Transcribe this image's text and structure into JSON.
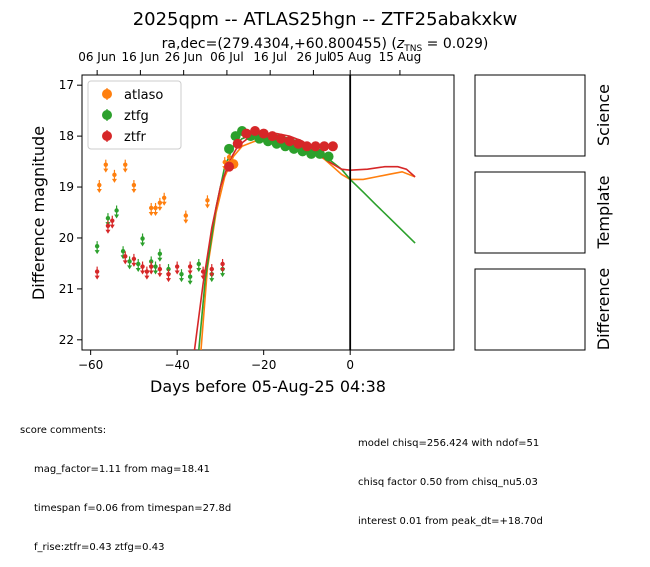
{
  "title": "2025qpm -- ATLAS25hgn -- ZTF25abakxkw",
  "subtitle_prefix": "ra,dec=(279.4304,+60.800455) (",
  "subtitle_z": "z",
  "subtitle_tns": "TNS",
  "subtitle_suffix": " = 0.029)",
  "colors": {
    "atlaso": "#ff7f0e",
    "ztfg": "#2ca02c",
    "ztfr": "#d62728"
  },
  "chart_data": {
    "type": "scatter",
    "xlabel": "Days before 05-Aug-25 04:38",
    "ylabel": "Difference magnitude",
    "xlim": [
      -62,
      24
    ],
    "ylim": [
      22.2,
      16.8
    ],
    "y_inverted": true,
    "x_ticks": [
      -60,
      -40,
      -20,
      0
    ],
    "y_ticks": [
      17,
      18,
      19,
      20,
      21,
      22
    ],
    "top_axis_ticks": [
      {
        "x": -58.5,
        "label": "06 Jun"
      },
      {
        "x": -48.5,
        "label": "16 Jun"
      },
      {
        "x": -38.5,
        "label": "26 Jun"
      },
      {
        "x": -28.5,
        "label": "06 Jul"
      },
      {
        "x": -18.5,
        "label": "16 Jul"
      },
      {
        "x": -8.5,
        "label": "26 Jul"
      },
      {
        "x": 0,
        "label": "05 Aug"
      },
      {
        "x": 11.5,
        "label": "15 Aug"
      }
    ],
    "vertical_line_x": 0,
    "legend": {
      "placement": "upper-left",
      "entries": [
        "atlaso",
        "ztfg",
        "ztfr"
      ]
    },
    "series": [
      {
        "name": "atlaso",
        "kind": "upper_limits",
        "points": [
          [
            -58,
            19.0
          ],
          [
            -56.5,
            18.6
          ],
          [
            -54.5,
            18.8
          ],
          [
            -52,
            18.6
          ],
          [
            -50,
            19.0
          ],
          [
            -46,
            19.45
          ],
          [
            -45,
            19.45
          ],
          [
            -44,
            19.35
          ],
          [
            -43,
            19.25
          ],
          [
            -38,
            19.6
          ],
          [
            -33,
            19.3
          ],
          [
            -29,
            18.55
          ],
          [
            -28,
            18.45
          ]
        ]
      },
      {
        "name": "atlaso",
        "kind": "detections",
        "points": [
          [
            -27,
            18.55
          ]
        ]
      },
      {
        "name": "ztfg",
        "kind": "upper_limits",
        "points": [
          [
            -58.5,
            20.2
          ],
          [
            -56,
            19.65
          ],
          [
            -54,
            19.5
          ],
          [
            -52.5,
            20.3
          ],
          [
            -51,
            20.5
          ],
          [
            -49,
            20.55
          ],
          [
            -48,
            20.05
          ],
          [
            -46,
            20.5
          ],
          [
            -45,
            20.6
          ],
          [
            -44,
            20.35
          ],
          [
            -42,
            20.65
          ],
          [
            -39,
            20.75
          ],
          [
            -37,
            20.8
          ],
          [
            -35,
            20.55
          ],
          [
            -32,
            20.75
          ],
          [
            -29.5,
            20.65
          ]
        ]
      },
      {
        "name": "ztfg",
        "kind": "detections",
        "points": [
          [
            -28,
            18.25
          ],
          [
            -26.5,
            18.0
          ],
          [
            -25,
            17.9
          ],
          [
            -23,
            18.0
          ],
          [
            -21,
            18.05
          ],
          [
            -19,
            18.1
          ],
          [
            -17,
            18.15
          ],
          [
            -15,
            18.2
          ],
          [
            -13,
            18.25
          ],
          [
            -11,
            18.3
          ],
          [
            -9,
            18.35
          ],
          [
            -7,
            18.35
          ],
          [
            -5,
            18.4
          ]
        ]
      },
      {
        "name": "ztfr",
        "kind": "upper_limits",
        "points": [
          [
            -58.5,
            20.7
          ],
          [
            -56,
            19.8
          ],
          [
            -55,
            19.7
          ],
          [
            -52,
            20.4
          ],
          [
            -50,
            20.45
          ],
          [
            -48,
            20.6
          ],
          [
            -47,
            20.7
          ],
          [
            -46,
            20.6
          ],
          [
            -44,
            20.65
          ],
          [
            -42,
            20.75
          ],
          [
            -40,
            20.6
          ],
          [
            -37,
            20.6
          ],
          [
            -34,
            20.7
          ],
          [
            -32,
            20.65
          ],
          [
            -29.5,
            20.55
          ]
        ]
      },
      {
        "name": "ztfr",
        "kind": "detections",
        "points": [
          [
            -28,
            18.6
          ],
          [
            -26,
            18.15
          ],
          [
            -24,
            17.95
          ],
          [
            -22,
            17.9
          ],
          [
            -20,
            17.95
          ],
          [
            -18,
            18.0
          ],
          [
            -16,
            18.05
          ],
          [
            -14,
            18.1
          ],
          [
            -12,
            18.15
          ],
          [
            -10,
            18.2
          ],
          [
            -8,
            18.2
          ],
          [
            -6,
            18.2
          ],
          [
            -4,
            18.2
          ]
        ]
      },
      {
        "name": "atlaso",
        "kind": "model",
        "points": [
          [
            -34.5,
            22.2
          ],
          [
            -33,
            20.6
          ],
          [
            -31,
            19.5
          ],
          [
            -29,
            18.8
          ],
          [
            -27,
            18.4
          ],
          [
            -25,
            18.2
          ],
          [
            -22,
            18.1
          ],
          [
            -18,
            18.1
          ],
          [
            -15,
            18.15
          ],
          [
            -12,
            18.2
          ],
          [
            -9,
            18.3
          ],
          [
            -6,
            18.45
          ],
          [
            -4,
            18.6
          ],
          [
            -2,
            18.75
          ],
          [
            0,
            18.85
          ],
          [
            3,
            18.85
          ],
          [
            6,
            18.8
          ],
          [
            9,
            18.75
          ],
          [
            12,
            18.7
          ],
          [
            15,
            18.8
          ]
        ]
      },
      {
        "name": "ztfg",
        "kind": "model",
        "points": [
          [
            -35,
            22.2
          ],
          [
            -33.5,
            20.8
          ],
          [
            -31,
            19.4
          ],
          [
            -29,
            18.6
          ],
          [
            -27,
            18.2
          ],
          [
            -25,
            18.05
          ],
          [
            -22,
            17.95
          ],
          [
            -19,
            17.95
          ],
          [
            -16,
            18.0
          ],
          [
            -12,
            18.1
          ],
          [
            -8,
            18.25
          ],
          [
            -5,
            18.45
          ],
          [
            -2,
            18.65
          ],
          [
            0,
            18.85
          ],
          [
            3,
            19.1
          ],
          [
            6,
            19.35
          ],
          [
            9,
            19.6
          ],
          [
            12,
            19.85
          ],
          [
            15,
            20.1
          ]
        ]
      },
      {
        "name": "ztfr",
        "kind": "model",
        "points": [
          [
            -36,
            22.2
          ],
          [
            -34,
            20.9
          ],
          [
            -32,
            19.8
          ],
          [
            -30,
            19.0
          ],
          [
            -28,
            18.5
          ],
          [
            -26,
            18.2
          ],
          [
            -23,
            18.0
          ],
          [
            -20,
            17.95
          ],
          [
            -17,
            17.95
          ],
          [
            -14,
            18.0
          ],
          [
            -11,
            18.1
          ],
          [
            -8,
            18.3
          ],
          [
            -5,
            18.5
          ],
          [
            -2,
            18.65
          ],
          [
            0,
            18.67
          ],
          [
            4,
            18.65
          ],
          [
            8,
            18.6
          ],
          [
            11,
            18.6
          ],
          [
            13,
            18.65
          ],
          [
            15,
            18.8
          ]
        ]
      }
    ]
  },
  "panels": [
    {
      "name": "science-panel",
      "label": "Science"
    },
    {
      "name": "template-panel",
      "label": "Template"
    },
    {
      "name": "difference-panel",
      "label": "Difference"
    }
  ],
  "comments_left": {
    "header": "score comments:",
    "lines": [
      "mag_factor=1.11 from mag=18.41",
      "timespan f=0.06 from timespan=27.8d",
      "f_rise:ztfr=0.43 ztfg=0.43"
    ]
  },
  "comments_right": {
    "lines": [
      "model chisq=256.424 with ndof=51",
      "chisq factor 0.50 from chisq_nu5.03",
      "interest 0.01 from peak_dt=+18.70d"
    ]
  }
}
